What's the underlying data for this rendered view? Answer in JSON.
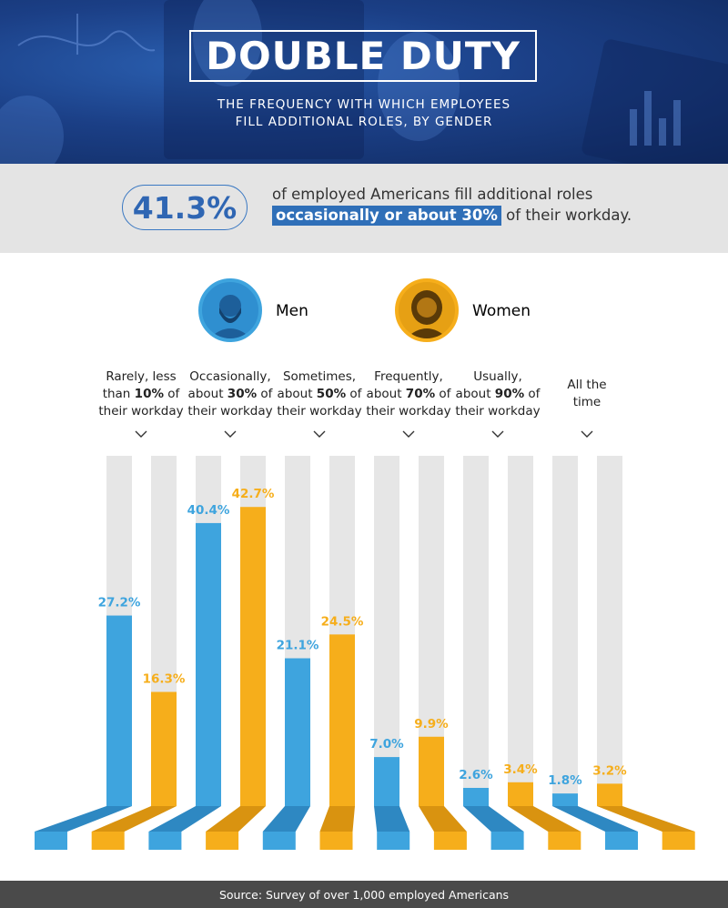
{
  "header": {
    "title": "DOUBLE DUTY",
    "subtitle_line1": "THE FREQUENCY WITH WHICH EMPLOYEES",
    "subtitle_line2": "FILL ADDITIONAL ROLES, BY GENDER"
  },
  "stat": {
    "value": "41.3%",
    "text_line1": "of employed Americans fill additional roles",
    "highlight": "occasionally or about 30%",
    "text_line2_rest": " of their workday."
  },
  "legend": {
    "men": "Men",
    "women": "Women"
  },
  "colors": {
    "men": "#3ea4de",
    "women": "#f6ae1b",
    "track": "#e6e6e6",
    "accent_blue": "#2f6fb8"
  },
  "categories": [
    {
      "line1": "Rarely, less",
      "line2a": "than ",
      "line2b": "10%",
      "line2c": " of",
      "line3": "their workday"
    },
    {
      "line1": "Occasionally,",
      "line2a": "about ",
      "line2b": "30%",
      "line2c": " of",
      "line3": "their workday"
    },
    {
      "line1": "Sometimes,",
      "line2a": "about ",
      "line2b": "50%",
      "line2c": " of",
      "line3": "their workday"
    },
    {
      "line1": "Frequently,",
      "line2a": "about ",
      "line2b": "70%",
      "line2c": " of",
      "line3": "their workday"
    },
    {
      "line1": "Usually,",
      "line2a": "about ",
      "line2b": "90%",
      "line2c": " of",
      "line3": "their workday"
    },
    {
      "line1": "",
      "line2a": "All the",
      "line2b": "",
      "line2c": "",
      "line3": "time"
    }
  ],
  "chart_data": {
    "type": "bar",
    "categories": [
      "Rarely, less than 10% of their workday",
      "Occasionally, about 30% of their workday",
      "Sometimes, about 50% of their workday",
      "Frequently, about 70% of their workday",
      "Usually, about 90% of their workday",
      "All the time"
    ],
    "series": [
      {
        "name": "Men",
        "values": [
          27.2,
          40.4,
          21.1,
          7.0,
          2.6,
          1.8
        ],
        "labels": [
          "27.2%",
          "40.4%",
          "21.1%",
          "7.0%",
          "2.6%",
          "1.8%"
        ]
      },
      {
        "name": "Women",
        "values": [
          16.3,
          42.7,
          24.5,
          9.9,
          3.4,
          3.2
        ],
        "labels": [
          "16.3%",
          "42.7%",
          "24.5%",
          "9.9%",
          "3.4%",
          "3.2%"
        ]
      }
    ],
    "ylim": [
      0,
      50
    ]
  },
  "footer": {
    "source": "Source: Survey of over 1,000 employed Americans"
  }
}
